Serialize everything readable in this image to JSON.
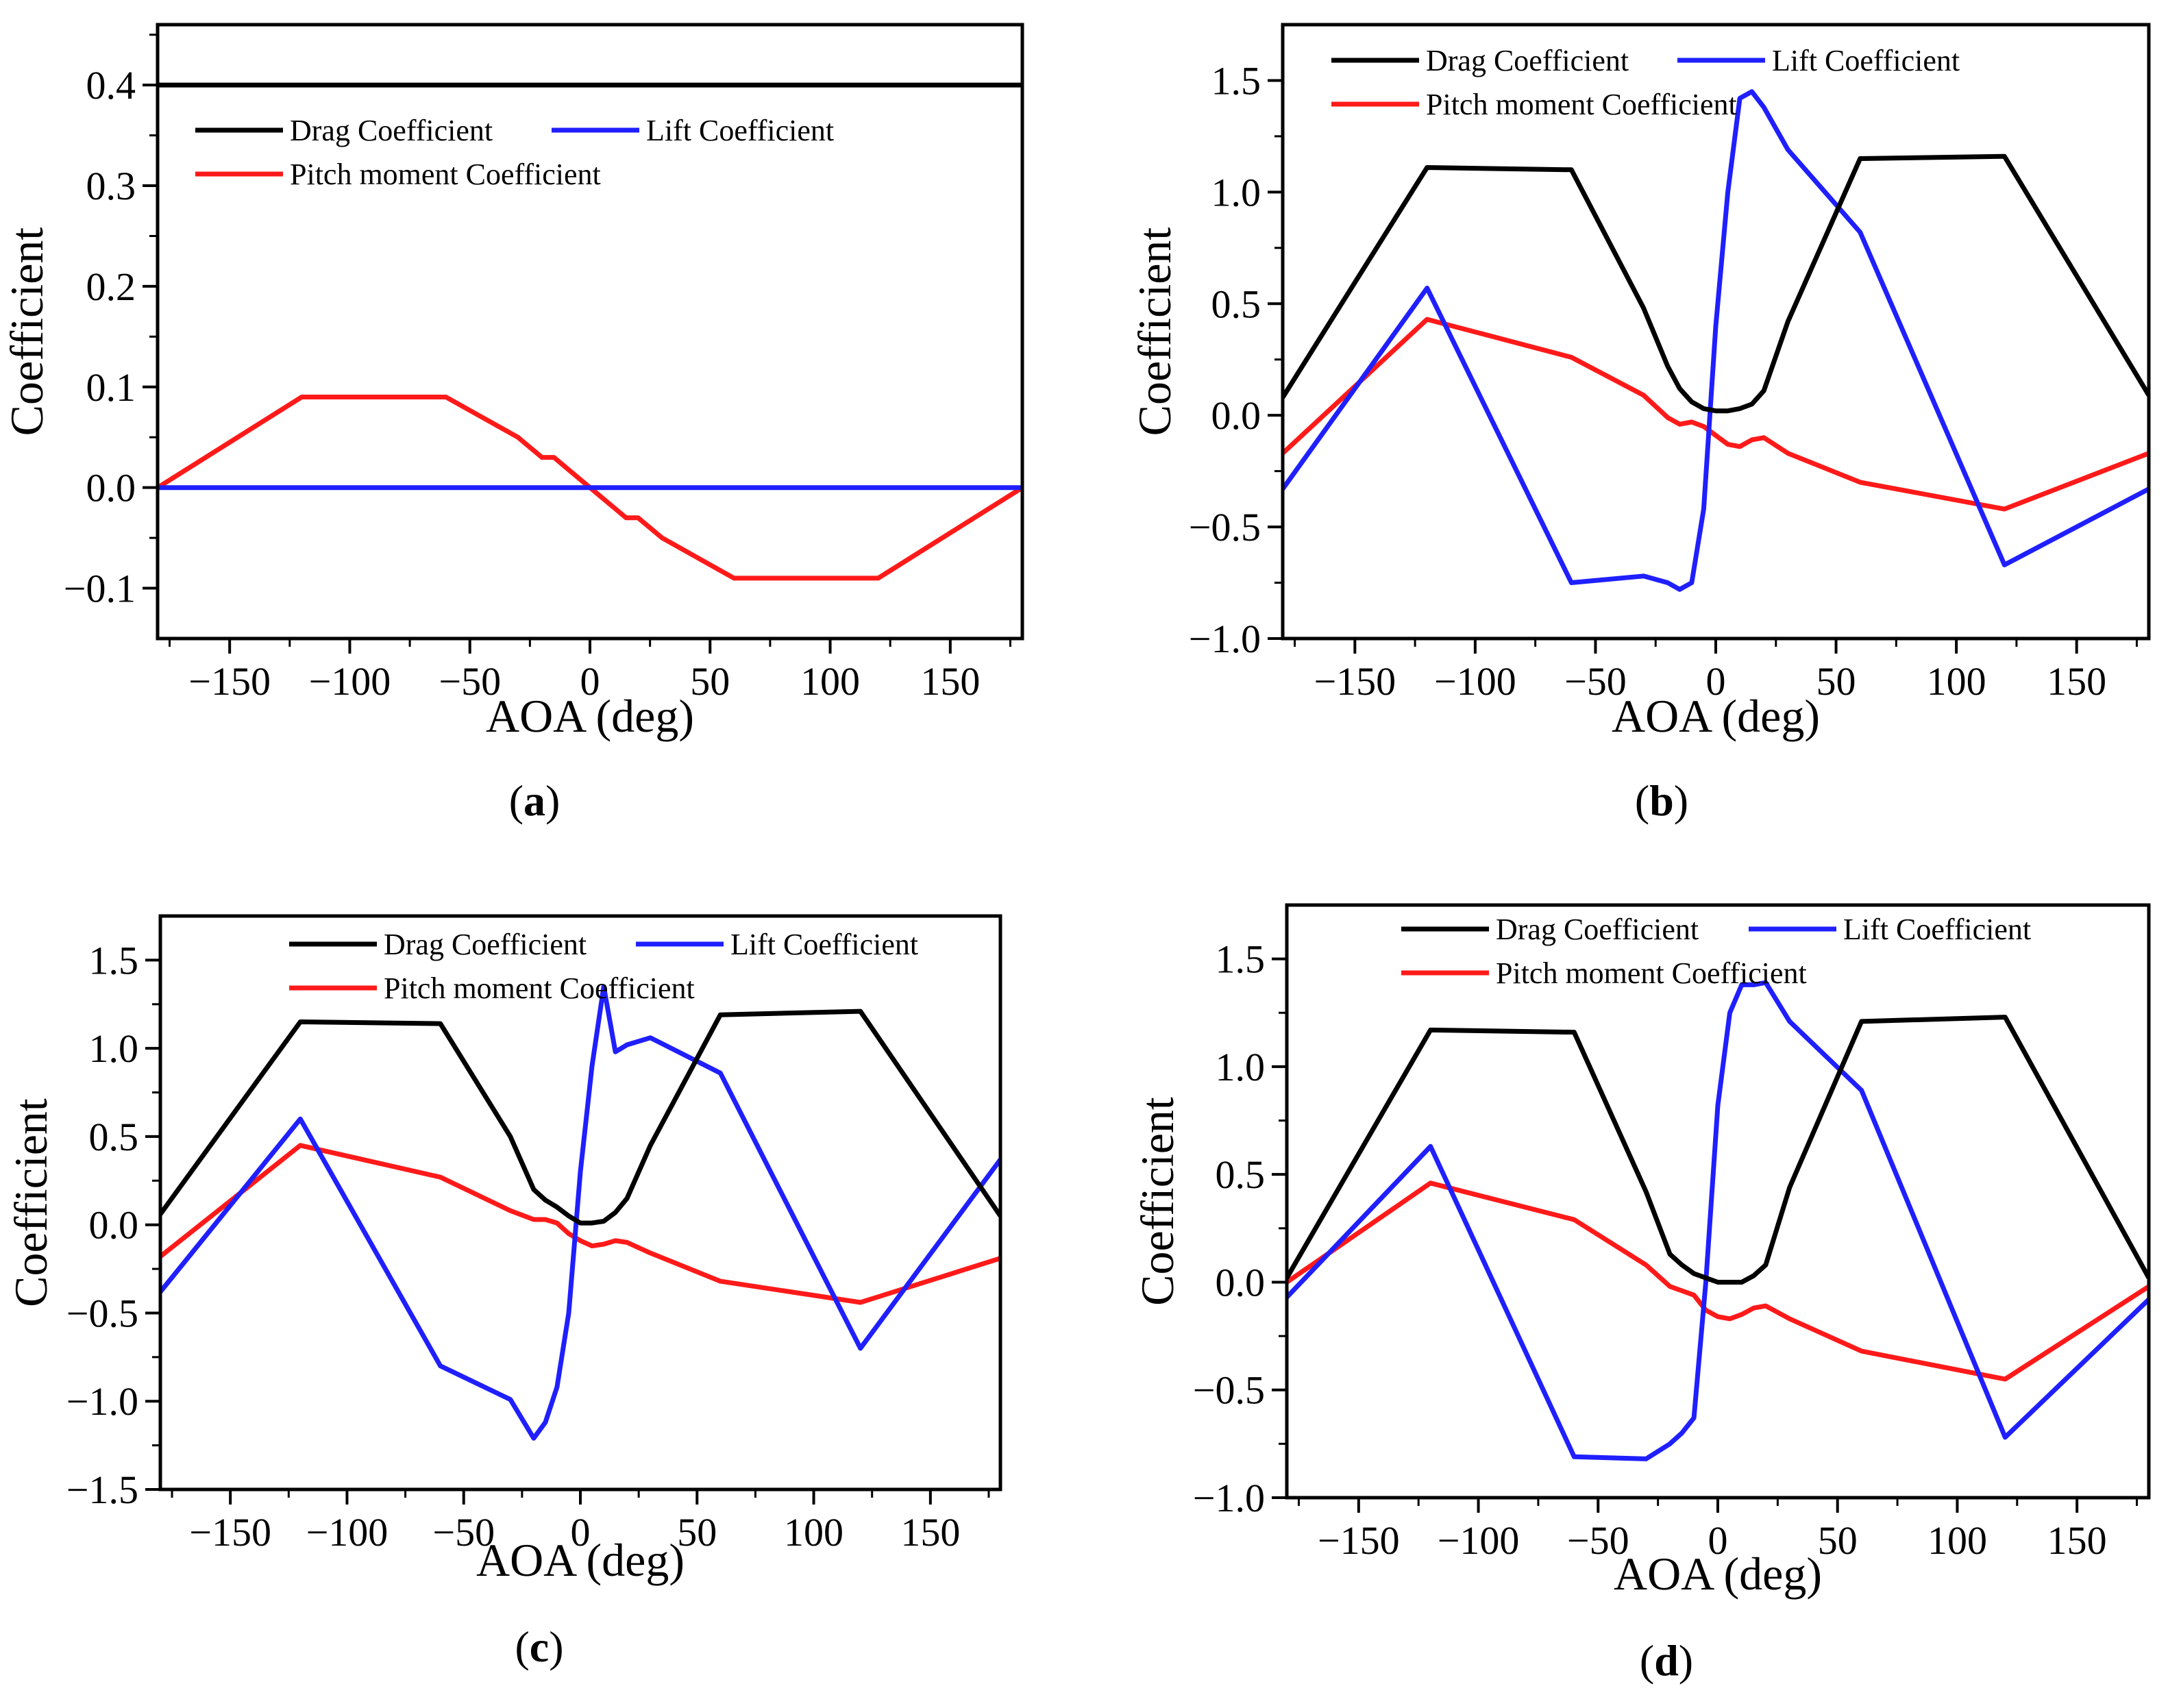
{
  "figure": {
    "panel_labels": [
      "(a)",
      "(b)",
      "(c)",
      "(d)"
    ]
  },
  "colors": {
    "drag": "#000000",
    "lift": "#1f1fff",
    "pitch": "#ff1a1a"
  },
  "chart_data": [
    {
      "type": "line",
      "panel": "a",
      "panel_letter": "a",
      "xlabel": "AOA (deg)",
      "ylabel": "Coefficient",
      "xlim": [
        -180,
        180
      ],
      "ylim": [
        -0.15,
        0.46
      ],
      "xticks": [
        -150,
        -100,
        -50,
        0,
        50,
        100,
        150
      ],
      "yticks": [
        -0.1,
        0.0,
        0.1,
        0.2,
        0.3,
        0.4
      ],
      "ytick_labels": [
        "−0.1",
        "0.0",
        "0.1",
        "0.2",
        "0.3",
        "0.4"
      ],
      "xtick_labels": [
        "−150",
        "−100",
        "−50",
        "0",
        "50",
        "100",
        "150"
      ],
      "legend": {
        "placement": "upper-left",
        "drag": "Drag Coefficient",
        "lift": "Lift Coefficient",
        "pitch": "Pitch moment Coefficient"
      },
      "series": [
        {
          "name": "Drag Coefficient",
          "key": "drag",
          "x": [
            -180,
            180
          ],
          "y": [
            0.4,
            0.4
          ]
        },
        {
          "name": "Lift Coefficient",
          "key": "lift",
          "x": [
            -180,
            180
          ],
          "y": [
            0.0,
            0.0
          ]
        },
        {
          "name": "Pitch moment Coefficient",
          "key": "pitch",
          "x": [
            -180,
            -120,
            -60,
            -30,
            -20,
            -15,
            -10,
            0,
            10,
            15,
            20,
            30,
            60,
            120,
            180
          ],
          "y": [
            0.0,
            0.09,
            0.09,
            0.05,
            0.03,
            0.03,
            0.02,
            0.0,
            -0.02,
            -0.03,
            -0.03,
            -0.05,
            -0.09,
            -0.09,
            0.0
          ]
        }
      ]
    },
    {
      "type": "line",
      "panel": "b",
      "panel_letter": "b",
      "xlabel": "AOA (deg)",
      "ylabel": "Coefficient",
      "xlim": [
        -180,
        180
      ],
      "ylim": [
        -1.0,
        1.75
      ],
      "xticks": [
        -150,
        -100,
        -50,
        0,
        50,
        100,
        150
      ],
      "yticks": [
        -1.0,
        -0.5,
        0.0,
        0.5,
        1.0,
        1.5
      ],
      "ytick_labels": [
        "−1.0",
        "−0.5",
        "0.0",
        "0.5",
        "1.0",
        "1.5"
      ],
      "xtick_labels": [
        "−150",
        "−100",
        "−50",
        "0",
        "50",
        "100",
        "150"
      ],
      "legend": {
        "placement": "top",
        "drag": "Drag Coefficient",
        "lift": "Lift Coefficient",
        "pitch": "Pitch moment Coefficient"
      },
      "series": [
        {
          "name": "Drag Coefficient",
          "key": "drag",
          "x": [
            -180,
            -120,
            -60,
            -30,
            -20,
            -15,
            -10,
            -5,
            0,
            5,
            10,
            15,
            20,
            30,
            60,
            120,
            180
          ],
          "y": [
            0.08,
            1.11,
            1.1,
            0.48,
            0.22,
            0.12,
            0.06,
            0.03,
            0.02,
            0.02,
            0.03,
            0.05,
            0.11,
            0.42,
            1.15,
            1.16,
            0.09
          ]
        },
        {
          "name": "Lift Coefficient",
          "key": "lift",
          "x": [
            -180,
            -120,
            -60,
            -30,
            -20,
            -15,
            -10,
            -5,
            0,
            5,
            10,
            15,
            20,
            30,
            60,
            120,
            180
          ],
          "y": [
            -0.33,
            0.57,
            -0.75,
            -0.72,
            -0.75,
            -0.78,
            -0.75,
            -0.42,
            0.4,
            1.0,
            1.42,
            1.45,
            1.38,
            1.19,
            0.82,
            -0.67,
            -0.33
          ]
        },
        {
          "name": "Pitch moment Coefficient",
          "key": "pitch",
          "x": [
            -180,
            -120,
            -60,
            -30,
            -20,
            -15,
            -10,
            -5,
            0,
            5,
            10,
            15,
            20,
            30,
            60,
            120,
            180
          ],
          "y": [
            -0.17,
            0.43,
            0.26,
            0.09,
            -0.01,
            -0.04,
            -0.03,
            -0.05,
            -0.09,
            -0.13,
            -0.14,
            -0.11,
            -0.1,
            -0.17,
            -0.3,
            -0.42,
            -0.17
          ]
        }
      ]
    },
    {
      "type": "line",
      "panel": "c",
      "panel_letter": "c",
      "xlabel": "AOA (deg)",
      "ylabel": "Coefficient",
      "xlim": [
        -180,
        180
      ],
      "ylim": [
        -1.5,
        1.75
      ],
      "xticks": [
        -150,
        -100,
        -50,
        0,
        50,
        100,
        150
      ],
      "yticks": [
        -1.5,
        -1.0,
        -0.5,
        0.0,
        0.5,
        1.0,
        1.5
      ],
      "ytick_labels": [
        "−1.5",
        "−1.0",
        "−0.5",
        "0.0",
        "0.5",
        "1.0",
        "1.5"
      ],
      "xtick_labels": [
        "−150",
        "−100",
        "−50",
        "0",
        "50",
        "100",
        "150"
      ],
      "legend": {
        "placement": "top-right",
        "drag": "Drag Coefficient",
        "lift": "Lift Coefficient",
        "pitch": "Pitch moment Coefficient"
      },
      "series": [
        {
          "name": "Drag Coefficient",
          "key": "drag",
          "x": [
            -180,
            -120,
            -60,
            -30,
            -20,
            -15,
            -10,
            -5,
            0,
            5,
            10,
            15,
            20,
            30,
            60,
            120,
            180
          ],
          "y": [
            0.06,
            1.15,
            1.14,
            0.5,
            0.2,
            0.14,
            0.1,
            0.05,
            0.01,
            0.01,
            0.02,
            0.07,
            0.15,
            0.45,
            1.19,
            1.21,
            0.05
          ]
        },
        {
          "name": "Lift Coefficient",
          "key": "lift",
          "x": [
            -180,
            -120,
            -60,
            -30,
            -20,
            -15,
            -10,
            -5,
            0,
            5,
            10,
            15,
            20,
            30,
            60,
            120,
            180
          ],
          "y": [
            -0.38,
            0.6,
            -0.8,
            -0.99,
            -1.21,
            -1.12,
            -0.92,
            -0.5,
            0.3,
            0.9,
            1.35,
            0.98,
            1.02,
            1.06,
            0.86,
            -0.7,
            0.37
          ]
        },
        {
          "name": "Pitch moment Coefficient",
          "key": "pitch",
          "x": [
            -180,
            -120,
            -60,
            -30,
            -20,
            -15,
            -10,
            -5,
            0,
            5,
            10,
            15,
            20,
            30,
            60,
            120,
            180
          ],
          "y": [
            -0.18,
            0.45,
            0.27,
            0.08,
            0.03,
            0.03,
            0.01,
            -0.05,
            -0.09,
            -0.12,
            -0.11,
            -0.09,
            -0.1,
            -0.16,
            -0.32,
            -0.44,
            -0.19
          ]
        }
      ]
    },
    {
      "type": "line",
      "panel": "d",
      "panel_letter": "d",
      "xlabel": "AOA (deg)",
      "ylabel": "Coefficient",
      "xlim": [
        -180,
        180
      ],
      "ylim": [
        -1.0,
        1.75
      ],
      "xticks": [
        -150,
        -100,
        -50,
        0,
        50,
        100,
        150
      ],
      "yticks": [
        -1.0,
        -0.5,
        0.0,
        0.5,
        1.0,
        1.5
      ],
      "ytick_labels": [
        "−1.0",
        "−0.5",
        "0.0",
        "0.5",
        "1.0",
        "1.5"
      ],
      "xtick_labels": [
        "−150",
        "−100",
        "−50",
        "0",
        "50",
        "100",
        "150"
      ],
      "legend": {
        "placement": "top",
        "drag": "Drag Coefficient",
        "lift": "Lift Coefficient",
        "pitch": "Pitch moment Coefficient"
      },
      "series": [
        {
          "name": "Drag Coefficient",
          "key": "drag",
          "x": [
            -180,
            -120,
            -60,
            -30,
            -20,
            -15,
            -10,
            -5,
            0,
            5,
            10,
            15,
            20,
            30,
            60,
            120,
            180
          ],
          "y": [
            0.02,
            1.17,
            1.16,
            0.42,
            0.13,
            0.08,
            0.04,
            0.02,
            0.0,
            0.0,
            0.0,
            0.03,
            0.08,
            0.44,
            1.21,
            1.23,
            0.02
          ]
        },
        {
          "name": "Lift Coefficient",
          "key": "lift",
          "x": [
            -180,
            -120,
            -60,
            -30,
            -20,
            -15,
            -10,
            -5,
            0,
            5,
            10,
            15,
            20,
            30,
            60,
            120,
            180
          ],
          "y": [
            -0.07,
            0.63,
            -0.81,
            -0.82,
            -0.75,
            -0.7,
            -0.63,
            0.0,
            0.82,
            1.25,
            1.38,
            1.38,
            1.39,
            1.21,
            0.89,
            -0.72,
            -0.08
          ]
        },
        {
          "name": "Pitch moment Coefficient",
          "key": "pitch",
          "x": [
            -180,
            -120,
            -60,
            -30,
            -20,
            -15,
            -10,
            -5,
            0,
            5,
            10,
            15,
            20,
            30,
            60,
            120,
            180
          ],
          "y": [
            0.0,
            0.46,
            0.29,
            0.08,
            -0.02,
            -0.04,
            -0.06,
            -0.13,
            -0.16,
            -0.17,
            -0.15,
            -0.12,
            -0.11,
            -0.17,
            -0.32,
            -0.45,
            -0.02
          ]
        }
      ]
    }
  ]
}
